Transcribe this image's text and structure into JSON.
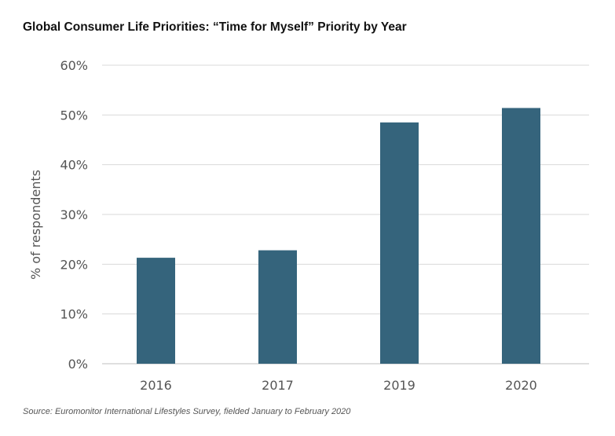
{
  "chart_data": {
    "type": "bar",
    "title": "Global Consumer Life Priorities: “Time for Myself” Priority by Year",
    "xlabel": "",
    "ylabel": "% of respondents",
    "categories": [
      "2016",
      "2017",
      "2019",
      "2020"
    ],
    "values": [
      21.3,
      22.8,
      48.5,
      51.4
    ],
    "ylim": [
      0,
      60
    ],
    "yticks": [
      0,
      10,
      20,
      30,
      40,
      50,
      60
    ],
    "ytick_labels": [
      "0%",
      "10%",
      "20%",
      "30%",
      "40%",
      "50%",
      "60%"
    ],
    "grid": "horizontal",
    "legend": "none",
    "bar_color": "#35647c",
    "grid_color": "#d9d9d9"
  },
  "source": "Source: Euromonitor International Lifestyles Survey, fielded January to February 2020"
}
